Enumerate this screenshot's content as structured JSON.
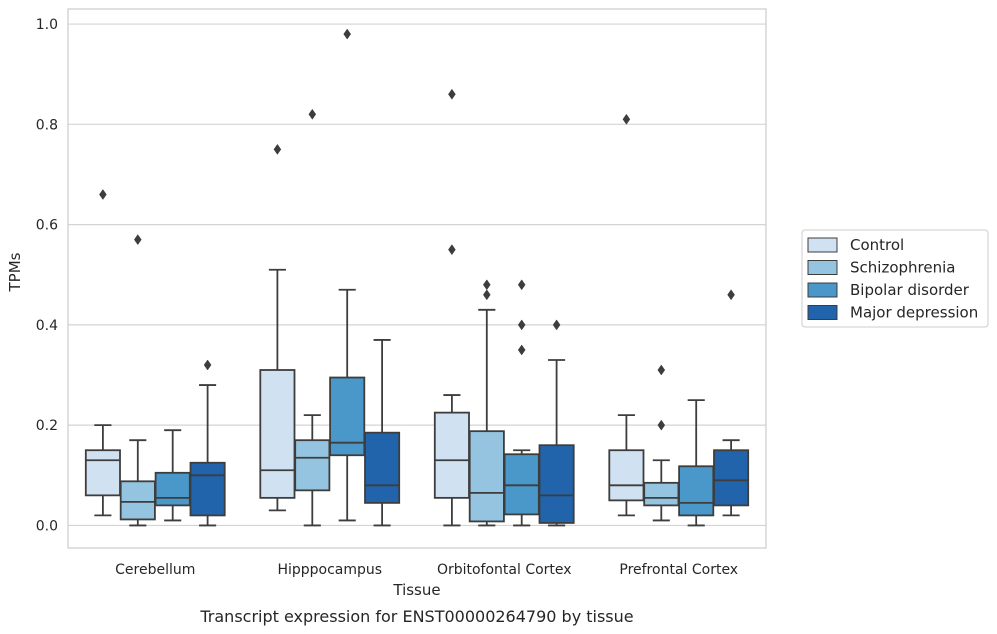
{
  "chart_data": {
    "type": "box",
    "caption": "Transcript expression for ENST00000264790 by tissue",
    "xlabel": "Tissue",
    "ylabel": "TPMs",
    "ylim": [
      -0.045,
      1.03
    ],
    "yticks": [
      0.0,
      0.2,
      0.4,
      0.6,
      0.8,
      1.0
    ],
    "ytick_labels": [
      "0.0",
      "0.2",
      "0.4",
      "0.6",
      "0.8",
      "1.0"
    ],
    "grid": "horizontal",
    "legend_position": "right, outside plot",
    "categories": [
      "Cerebellum",
      "Hipppocampus",
      "Orbitofontal Cortex",
      "Prefrontal Cortex"
    ],
    "series": [
      {
        "name": "Control",
        "color": "#d0e1f2",
        "boxes": [
          {
            "whislo": 0.02,
            "q1": 0.06,
            "med": 0.13,
            "q3": 0.15,
            "whishi": 0.2,
            "fliers": [
              0.66
            ]
          },
          {
            "whislo": 0.03,
            "q1": 0.055,
            "med": 0.11,
            "q3": 0.31,
            "whishi": 0.51,
            "fliers": [
              0.75
            ]
          },
          {
            "whislo": 0.0,
            "q1": 0.055,
            "med": 0.13,
            "q3": 0.225,
            "whishi": 0.26,
            "fliers": [
              0.55,
              0.86
            ]
          },
          {
            "whislo": 0.02,
            "q1": 0.05,
            "med": 0.08,
            "q3": 0.15,
            "whishi": 0.22,
            "fliers": [
              0.81
            ]
          }
        ]
      },
      {
        "name": "Schizophrenia",
        "color": "#94c4df",
        "boxes": [
          {
            "whislo": 0.0,
            "q1": 0.012,
            "med": 0.047,
            "q3": 0.088,
            "whishi": 0.17,
            "fliers": [
              0.57
            ]
          },
          {
            "whislo": 0.0,
            "q1": 0.07,
            "med": 0.135,
            "q3": 0.17,
            "whishi": 0.22,
            "fliers": [
              0.82
            ]
          },
          {
            "whislo": 0.0,
            "q1": 0.008,
            "med": 0.065,
            "q3": 0.188,
            "whishi": 0.43,
            "fliers": [
              0.46,
              0.48
            ]
          },
          {
            "whislo": 0.01,
            "q1": 0.04,
            "med": 0.055,
            "q3": 0.085,
            "whishi": 0.13,
            "fliers": [
              0.2,
              0.31
            ]
          }
        ]
      },
      {
        "name": "Bipolar disorder",
        "color": "#4a98c9",
        "boxes": [
          {
            "whislo": 0.01,
            "q1": 0.04,
            "med": 0.055,
            "q3": 0.105,
            "whishi": 0.19,
            "fliers": []
          },
          {
            "whislo": 0.01,
            "q1": 0.14,
            "med": 0.165,
            "q3": 0.295,
            "whishi": 0.47,
            "fliers": [
              0.98
            ]
          },
          {
            "whislo": 0.0,
            "q1": 0.022,
            "med": 0.08,
            "q3": 0.142,
            "whishi": 0.15,
            "fliers": [
              0.35,
              0.4,
              0.48
            ]
          },
          {
            "whislo": 0.0,
            "q1": 0.02,
            "med": 0.045,
            "q3": 0.118,
            "whishi": 0.25,
            "fliers": []
          }
        ]
      },
      {
        "name": "Major depression",
        "color": "#2164ab",
        "boxes": [
          {
            "whislo": 0.0,
            "q1": 0.02,
            "med": 0.1,
            "q3": 0.125,
            "whishi": 0.28,
            "fliers": [
              0.32
            ]
          },
          {
            "whislo": 0.0,
            "q1": 0.045,
            "med": 0.08,
            "q3": 0.185,
            "whishi": 0.37,
            "fliers": []
          },
          {
            "whislo": 0.0,
            "q1": 0.005,
            "med": 0.06,
            "q3": 0.16,
            "whishi": 0.33,
            "fliers": [
              0.4
            ]
          },
          {
            "whislo": 0.02,
            "q1": 0.04,
            "med": 0.09,
            "q3": 0.15,
            "whishi": 0.17,
            "fliers": [
              0.46
            ]
          }
        ]
      }
    ]
  }
}
